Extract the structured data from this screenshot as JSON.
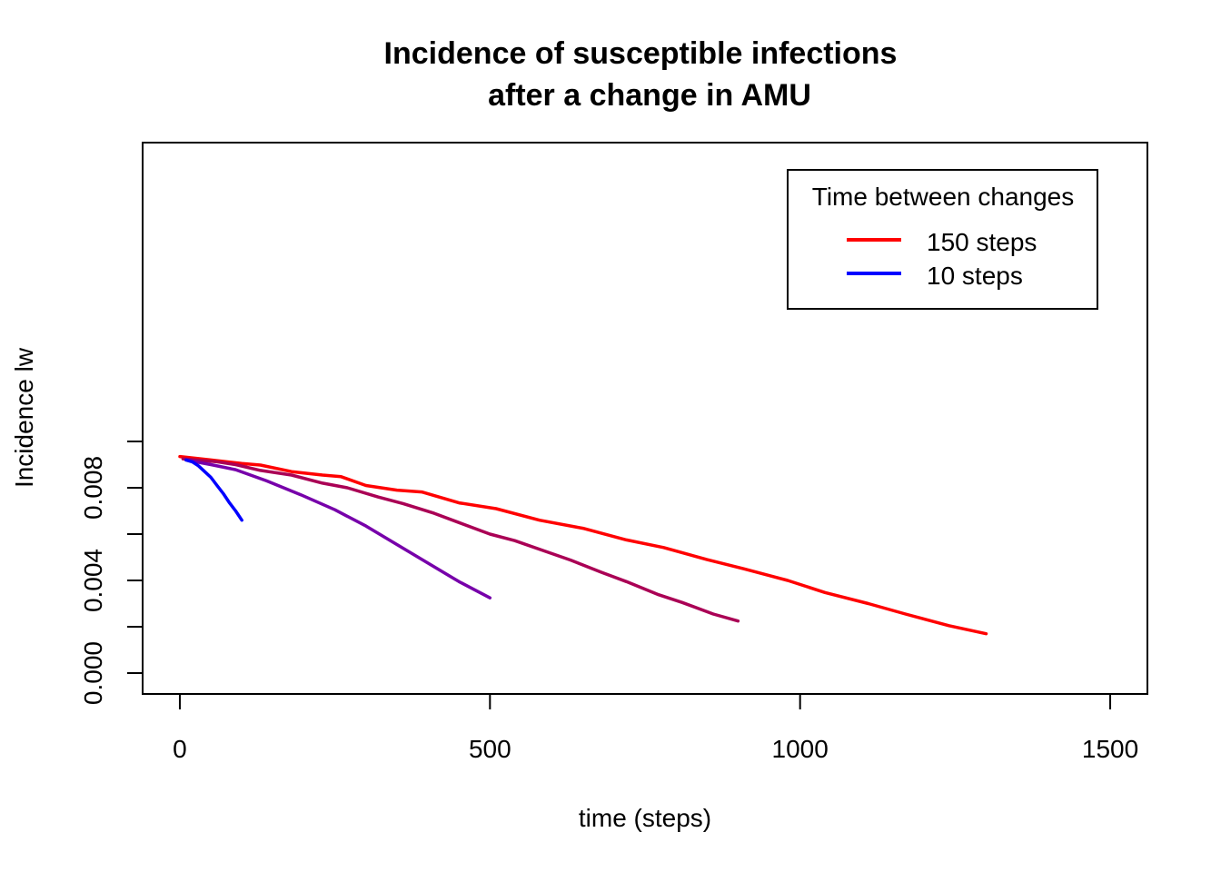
{
  "chart_data": {
    "type": "line",
    "title": [
      "Incidence of susceptible infections",
      "after a change in AMU"
    ],
    "xlabel": "time (steps)",
    "ylabel": "Incidence lw",
    "xlim": [
      -60,
      1560
    ],
    "ylim": [
      -0.0009,
      0.0229
    ],
    "x_ticks": [
      0,
      500,
      1000,
      1500
    ],
    "x_tick_labels": [
      "0",
      "500",
      "1000",
      "1500"
    ],
    "y_ticks": [
      0.0,
      0.002,
      0.004,
      0.006,
      0.008,
      0.01
    ],
    "y_tick_labels": [
      "0.000",
      "",
      "0.004",
      "",
      "0.008",
      ""
    ],
    "grid": false,
    "legend": {
      "title": "Time between changes",
      "position": "top-right",
      "entries": [
        {
          "label": "150 steps",
          "color": "#ff0000"
        },
        {
          "label": "10 steps",
          "color": "#0000ff"
        }
      ]
    },
    "series": [
      {
        "color": "#ff0000",
        "x": [
          0,
          50,
          100,
          130,
          180,
          230,
          260,
          300,
          350,
          390,
          450,
          510,
          580,
          650,
          720,
          780,
          850,
          910,
          980,
          1040,
          1110,
          1170,
          1240,
          1300
        ],
        "y": [
          0.00935,
          0.0092,
          0.00905,
          0.00898,
          0.0087,
          0.00855,
          0.00848,
          0.0081,
          0.0079,
          0.00782,
          0.00735,
          0.0071,
          0.0066,
          0.00625,
          0.00575,
          0.00542,
          0.0049,
          0.0045,
          0.004,
          0.00348,
          0.003,
          0.00255,
          0.00205,
          0.0017
        ]
      },
      {
        "color": "#aa0055",
        "x": [
          5,
          60,
          90,
          130,
          180,
          230,
          270,
          320,
          360,
          410,
          450,
          500,
          540,
          590,
          630,
          680,
          720,
          770,
          810,
          860,
          900
        ],
        "y": [
          0.00925,
          0.00912,
          0.009,
          0.00875,
          0.00855,
          0.0082,
          0.008,
          0.0076,
          0.00732,
          0.0069,
          0.0065,
          0.006,
          0.00572,
          0.00525,
          0.00488,
          0.00435,
          0.00395,
          0.0034,
          0.00305,
          0.00255,
          0.00225
        ]
      },
      {
        "color": "#7700aa",
        "x": [
          10,
          50,
          90,
          140,
          195,
          250,
          300,
          350,
          400,
          450,
          500
        ],
        "y": [
          0.0092,
          0.009,
          0.00878,
          0.0083,
          0.0077,
          0.00705,
          0.00635,
          0.00555,
          0.00475,
          0.00395,
          0.00325
        ]
      },
      {
        "color": "#0000ff",
        "x": [
          10,
          20,
          30,
          40,
          50,
          60,
          70,
          80,
          90,
          100
        ],
        "y": [
          0.0092,
          0.00912,
          0.00895,
          0.0087,
          0.00845,
          0.0081,
          0.00775,
          0.00735,
          0.007,
          0.0066
        ]
      }
    ]
  }
}
